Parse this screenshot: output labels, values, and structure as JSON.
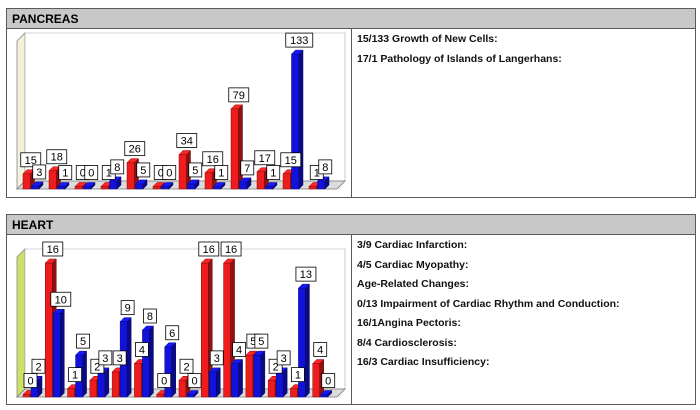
{
  "panels": [
    {
      "title": "PANCREAS",
      "legend": [
        "15/133 Growth of New Cells:",
        "17/1 Pathology of Islands of Langerhans:"
      ]
    },
    {
      "title": "HEART",
      "legend": [
        "3/9 Cardiac Infarction:",
        "4/5 Cardiac Myopathy:",
        "Age-Related Changes:",
        "0/13 Impairment of Cardiac Rhythm and Conduction:",
        "16/1Angina Pectoris:",
        "8/4 Cardiosclerosis:",
        "16/3 Cardiac Insufficiency:"
      ]
    }
  ],
  "colors": {
    "red": "#ee1c1c",
    "blue": "#1212dd",
    "wall_pancreas": "#f3f0dc",
    "wall_heart": "#cde06a"
  },
  "chart_data": [
    {
      "type": "bar",
      "title": "PANCREAS",
      "ylim": [
        0,
        140
      ],
      "series": [
        {
          "color": "red",
          "values": [
            15,
            18,
            0,
            1,
            26,
            0,
            34,
            16,
            79,
            17,
            15,
            1
          ]
        },
        {
          "color": "blue",
          "values": [
            3,
            1,
            0,
            8,
            5,
            0,
            5,
            1,
            7,
            1,
            133,
            8
          ]
        }
      ]
    },
    {
      "type": "bar",
      "title": "HEART",
      "ylim": [
        0,
        16
      ],
      "series": [
        {
          "color": "red",
          "values": [
            0,
            16,
            1,
            2,
            3,
            4,
            0,
            2,
            16,
            16,
            5,
            2,
            1,
            4
          ]
        },
        {
          "color": "blue",
          "values": [
            2,
            10,
            5,
            3,
            9,
            8,
            6,
            0,
            3,
            4,
            5,
            3,
            13,
            0
          ]
        }
      ]
    }
  ]
}
